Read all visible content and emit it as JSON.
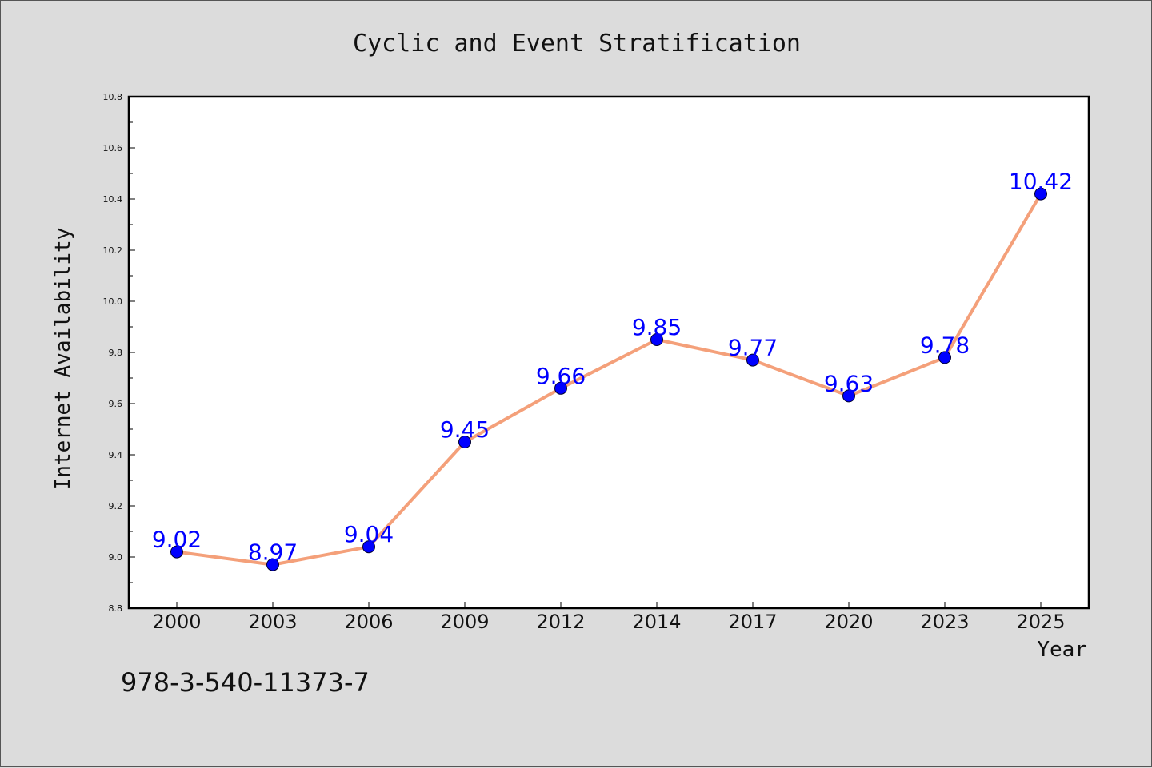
{
  "chart_data": {
    "type": "line",
    "title": "Cyclic and Event Stratification",
    "xlabel": "Year",
    "ylabel": "Internet Availability",
    "categories": [
      "2000",
      "2003",
      "2006",
      "2009",
      "2012",
      "2014",
      "2017",
      "2020",
      "2023",
      "2025"
    ],
    "series": [
      {
        "values": [
          9.02,
          8.97,
          9.04,
          9.45,
          9.66,
          9.85,
          9.77,
          9.63,
          9.78,
          10.42
        ],
        "line_color": "#f4a07a",
        "marker_color": "#0000ff"
      }
    ],
    "data_labels": [
      "9.02",
      "8.97",
      "9.04",
      "9.45",
      "9.66",
      "9.85",
      "9.77",
      "9.63",
      "9.78",
      "10.42"
    ],
    "ylim": [
      8.8,
      10.8
    ],
    "yticks": [
      "8.8",
      "9.0",
      "9.2",
      "9.4",
      "9.6",
      "9.8",
      "10.0",
      "10.2",
      "10.4",
      "10.6",
      "10.8"
    ],
    "grid": false,
    "annotation": "978-3-540-11373-7"
  }
}
